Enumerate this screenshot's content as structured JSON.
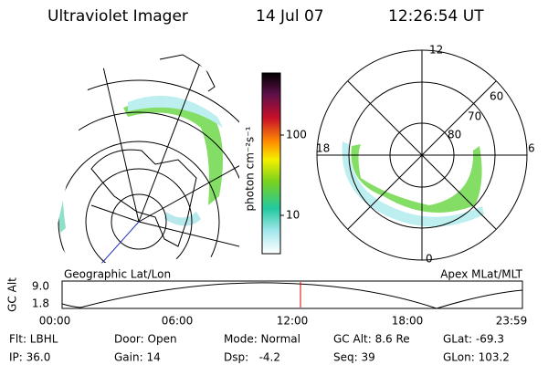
{
  "header": {
    "title": "Ultraviolet Imager",
    "date": "14 Jul 07",
    "time": "12:26:54 UT"
  },
  "left_panel": {
    "caption": "Geographic Lat/Lon"
  },
  "colorbar": {
    "label": "photon cm⁻²s⁻¹",
    "ticks": [
      "100",
      "10"
    ]
  },
  "right_panel": {
    "caption": "Apex MLat/MLT",
    "mlt_labels": [
      "12",
      "6",
      "0",
      "18"
    ],
    "mlat_labels": [
      "60",
      "70",
      "80"
    ]
  },
  "altitude_plot": {
    "axis_label": "GC Alt",
    "ticks": [
      "9.0",
      "1.8"
    ],
    "time_labels": [
      "00:00",
      "06:00",
      "12:00",
      "18:00",
      "23:59"
    ]
  },
  "footer": {
    "rows": [
      [
        "Flt: LBHL",
        "Door: Open",
        "Mode: Normal",
        "GC Alt: 8.6 Re",
        "GLat: -69.3"
      ],
      [
        "IP: 36.0",
        "Gain: 14",
        "Dsp:   -4.2",
        "Seq: 39",
        "GLon: 103.2"
      ]
    ]
  }
}
